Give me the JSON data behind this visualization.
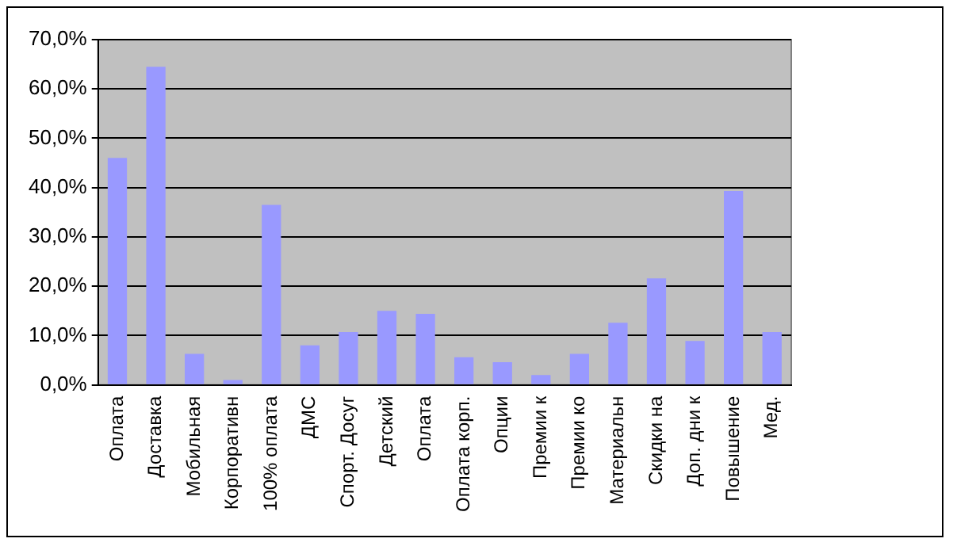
{
  "chart_data": {
    "type": "bar",
    "categories": [
      "Оплата",
      "Доставка",
      "Мобильная",
      "Корпоративн",
      "100% оплата",
      "ДМС",
      "Спорт. Досуг",
      "Детский",
      "Оплата",
      "Оплата корп.",
      "Опции",
      "Премии к",
      "Премии ко",
      "Материальн",
      "Скидки на",
      "Доп. дни к",
      "Повышение",
      "Мед."
    ],
    "values": [
      46,
      64.5,
      6.3,
      1,
      36.5,
      8,
      10.7,
      15,
      14.4,
      5.6,
      4.6,
      2,
      6.3,
      12.6,
      21.6,
      8.9,
      39.3,
      10.7
    ],
    "color": "#9999ff",
    "ylim": [
      0,
      70
    ],
    "yticks": [
      {
        "value": 0,
        "label": "0,0%"
      },
      {
        "value": 10,
        "label": "10,0%"
      },
      {
        "value": 20,
        "label": "20,0%"
      },
      {
        "value": 30,
        "label": "30,0%"
      },
      {
        "value": 40,
        "label": "40,0%"
      },
      {
        "value": 50,
        "label": "50,0%"
      },
      {
        "value": 60,
        "label": "60,0%"
      },
      {
        "value": 70,
        "label": "70,0%"
      }
    ],
    "grid": "y",
    "legend": false
  }
}
